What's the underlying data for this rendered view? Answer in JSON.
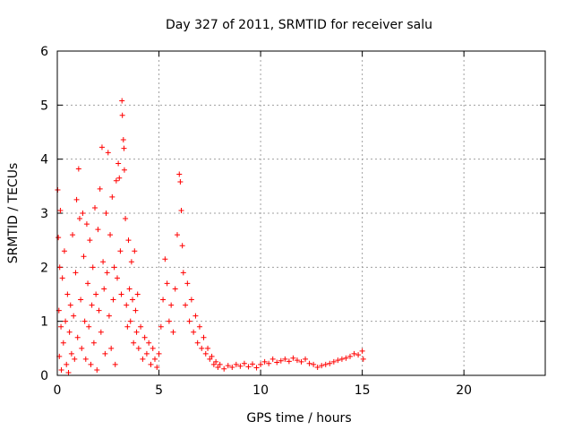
{
  "chart_data": {
    "type": "scatter",
    "title": "Day 327 of 2011, SRMTID for receiver salu",
    "xlabel": "GPS time / hours",
    "ylabel": "SRMTID / TECUs",
    "xlim": [
      0,
      24
    ],
    "ylim": [
      0,
      6
    ],
    "xticks": [
      0,
      5,
      10,
      15,
      20
    ],
    "yticks": [
      0,
      1,
      2,
      3,
      4,
      5,
      6
    ],
    "grid": true,
    "marker": "+",
    "color": "#ff0000",
    "series": [
      {
        "name": "SRMTID",
        "points": [
          [
            0.02,
            3.43
          ],
          [
            0.05,
            2.55
          ],
          [
            0.08,
            1.2
          ],
          [
            0.1,
            0.35
          ],
          [
            0.12,
            2.0
          ],
          [
            0.15,
            3.05
          ],
          [
            0.18,
            0.9
          ],
          [
            0.2,
            0.1
          ],
          [
            0.25,
            1.8
          ],
          [
            0.3,
            0.6
          ],
          [
            0.35,
            2.3
          ],
          [
            0.4,
            1.0
          ],
          [
            0.45,
            0.2
          ],
          [
            0.5,
            1.5
          ],
          [
            0.55,
            0.05
          ],
          [
            0.6,
            0.8
          ],
          [
            0.65,
            1.3
          ],
          [
            0.7,
            0.4
          ],
          [
            0.75,
            2.6
          ],
          [
            0.8,
            1.1
          ],
          [
            0.85,
            0.3
          ],
          [
            0.9,
            1.9
          ],
          [
            0.95,
            3.25
          ],
          [
            1.0,
            0.7
          ],
          [
            1.05,
            3.82
          ],
          [
            1.1,
            2.9
          ],
          [
            1.15,
            1.4
          ],
          [
            1.2,
            0.5
          ],
          [
            1.25,
            3.0
          ],
          [
            1.3,
            2.2
          ],
          [
            1.35,
            1.0
          ],
          [
            1.4,
            0.3
          ],
          [
            1.45,
            2.8
          ],
          [
            1.5,
            1.7
          ],
          [
            1.55,
            0.9
          ],
          [
            1.6,
            2.5
          ],
          [
            1.65,
            0.2
          ],
          [
            1.7,
            1.3
          ],
          [
            1.75,
            2.0
          ],
          [
            1.8,
            0.6
          ],
          [
            1.85,
            3.1
          ],
          [
            1.9,
            1.5
          ],
          [
            1.95,
            0.1
          ],
          [
            2.0,
            2.7
          ],
          [
            2.05,
            1.2
          ],
          [
            2.1,
            3.45
          ],
          [
            2.15,
            0.8
          ],
          [
            2.2,
            4.22
          ],
          [
            2.25,
            2.1
          ],
          [
            2.3,
            1.6
          ],
          [
            2.35,
            0.4
          ],
          [
            2.4,
            3.0
          ],
          [
            2.45,
            1.9
          ],
          [
            2.5,
            4.12
          ],
          [
            2.55,
            1.1
          ],
          [
            2.6,
            2.6
          ],
          [
            2.65,
            0.5
          ],
          [
            2.7,
            3.3
          ],
          [
            2.75,
            1.4
          ],
          [
            2.8,
            2.0
          ],
          [
            2.85,
            0.2
          ],
          [
            2.9,
            3.6
          ],
          [
            2.95,
            1.8
          ],
          [
            3.0,
            3.92
          ],
          [
            3.05,
            3.65
          ],
          [
            3.1,
            2.3
          ],
          [
            3.15,
            1.5
          ],
          [
            3.18,
            5.08
          ],
          [
            3.2,
            4.81
          ],
          [
            3.25,
            4.36
          ],
          [
            3.28,
            4.2
          ],
          [
            3.3,
            3.8
          ],
          [
            3.35,
            2.9
          ],
          [
            3.4,
            1.3
          ],
          [
            3.45,
            0.9
          ],
          [
            3.5,
            2.5
          ],
          [
            3.55,
            1.6
          ],
          [
            3.6,
            1.0
          ],
          [
            3.65,
            2.1
          ],
          [
            3.7,
            1.4
          ],
          [
            3.75,
            0.6
          ],
          [
            3.8,
            2.3
          ],
          [
            3.85,
            1.2
          ],
          [
            3.9,
            0.8
          ],
          [
            3.95,
            1.5
          ],
          [
            4.0,
            0.5
          ],
          [
            4.1,
            0.9
          ],
          [
            4.2,
            0.3
          ],
          [
            4.3,
            0.7
          ],
          [
            4.4,
            0.4
          ],
          [
            4.5,
            0.6
          ],
          [
            4.6,
            0.2
          ],
          [
            4.7,
            0.5
          ],
          [
            4.8,
            0.3
          ],
          [
            4.9,
            0.15
          ],
          [
            5.0,
            0.4
          ],
          [
            5.1,
            0.9
          ],
          [
            5.2,
            1.4
          ],
          [
            5.3,
            2.15
          ],
          [
            5.4,
            1.7
          ],
          [
            5.5,
            1.0
          ],
          [
            5.6,
            1.3
          ],
          [
            5.7,
            0.8
          ],
          [
            5.8,
            1.6
          ],
          [
            5.9,
            2.6
          ],
          [
            6.0,
            3.72
          ],
          [
            6.05,
            3.58
          ],
          [
            6.1,
            3.05
          ],
          [
            6.15,
            2.4
          ],
          [
            6.2,
            1.9
          ],
          [
            6.3,
            1.3
          ],
          [
            6.4,
            1.7
          ],
          [
            6.5,
            1.0
          ],
          [
            6.6,
            1.4
          ],
          [
            6.7,
            0.8
          ],
          [
            6.8,
            1.1
          ],
          [
            6.9,
            0.6
          ],
          [
            7.0,
            0.9
          ],
          [
            7.1,
            0.5
          ],
          [
            7.2,
            0.7
          ],
          [
            7.3,
            0.4
          ],
          [
            7.4,
            0.5
          ],
          [
            7.5,
            0.3
          ],
          [
            7.6,
            0.35
          ],
          [
            7.7,
            0.2
          ],
          [
            7.8,
            0.25
          ],
          [
            7.9,
            0.15
          ],
          [
            8.0,
            0.2
          ],
          [
            8.2,
            0.12
          ],
          [
            8.4,
            0.18
          ],
          [
            8.6,
            0.15
          ],
          [
            8.8,
            0.2
          ],
          [
            9.0,
            0.17
          ],
          [
            9.2,
            0.22
          ],
          [
            9.4,
            0.16
          ],
          [
            9.6,
            0.21
          ],
          [
            9.8,
            0.14
          ],
          [
            10.0,
            0.2
          ],
          [
            10.2,
            0.25
          ],
          [
            10.4,
            0.22
          ],
          [
            10.6,
            0.3
          ],
          [
            10.8,
            0.24
          ],
          [
            11.0,
            0.27
          ],
          [
            11.2,
            0.3
          ],
          [
            11.4,
            0.26
          ],
          [
            11.6,
            0.32
          ],
          [
            11.8,
            0.28
          ],
          [
            12.0,
            0.25
          ],
          [
            12.2,
            0.3
          ],
          [
            12.4,
            0.22
          ],
          [
            12.6,
            0.2
          ],
          [
            12.8,
            0.15
          ],
          [
            13.0,
            0.18
          ],
          [
            13.2,
            0.2
          ],
          [
            13.4,
            0.22
          ],
          [
            13.6,
            0.25
          ],
          [
            13.8,
            0.28
          ],
          [
            14.0,
            0.3
          ],
          [
            14.2,
            0.32
          ],
          [
            14.4,
            0.35
          ],
          [
            14.6,
            0.4
          ],
          [
            14.8,
            0.38
          ],
          [
            15.0,
            0.45
          ],
          [
            15.05,
            0.3
          ]
        ]
      }
    ]
  }
}
